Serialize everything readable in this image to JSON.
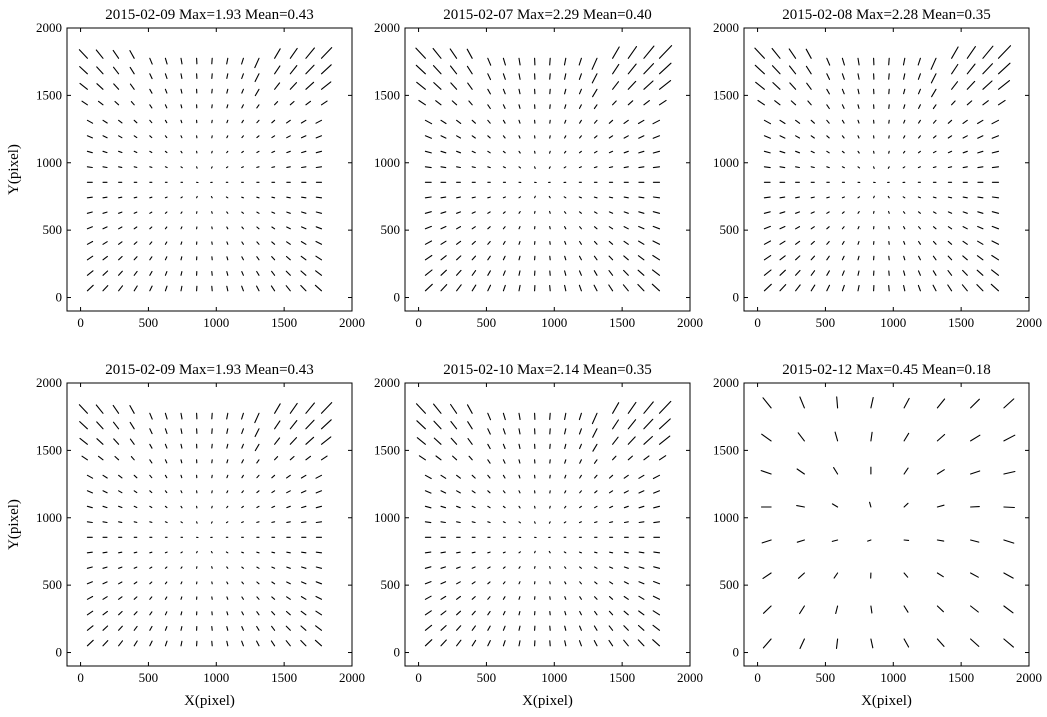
{
  "figure": {
    "xlabel": "X(pixel)",
    "ylabel": "Y(pixel)"
  },
  "chart_data": [
    {
      "type": "quiver",
      "title": "2015-02-09 Max=1.93 Mean=0.43",
      "xlim": [
        -100,
        2000
      ],
      "ylim": [
        -100,
        2000
      ],
      "xticks": [
        0,
        500,
        1000,
        1500,
        2000
      ],
      "yticks": [
        0,
        500,
        1000,
        1500,
        2000
      ],
      "grid_start": 50,
      "grid_step": 115,
      "grid_n": 17,
      "pattern": "radial",
      "max": 1.93,
      "mean": 0.43
    },
    {
      "type": "quiver",
      "title": "2015-02-07 Max=2.29 Mean=0.40",
      "xlim": [
        -100,
        2000
      ],
      "ylim": [
        -100,
        2000
      ],
      "xticks": [
        0,
        500,
        1000,
        1500,
        2000
      ],
      "yticks": [
        0,
        500,
        1000,
        1500,
        2000
      ],
      "grid_start": 50,
      "grid_step": 115,
      "grid_n": 17,
      "pattern": "radial",
      "max": 2.29,
      "mean": 0.4
    },
    {
      "type": "quiver",
      "title": "2015-02-08 Max=2.28 Mean=0.35",
      "xlim": [
        -100,
        2000
      ],
      "ylim": [
        -100,
        2000
      ],
      "xticks": [
        0,
        500,
        1000,
        1500,
        2000
      ],
      "yticks": [
        0,
        500,
        1000,
        1500,
        2000
      ],
      "grid_start": 50,
      "grid_step": 115,
      "grid_n": 17,
      "pattern": "radial",
      "max": 2.28,
      "mean": 0.35
    },
    {
      "type": "quiver",
      "title": "2015-02-09 Max=1.93 Mean=0.43",
      "xlim": [
        -100,
        2000
      ],
      "ylim": [
        -100,
        2000
      ],
      "xticks": [
        0,
        500,
        1000,
        1500,
        2000
      ],
      "yticks": [
        0,
        500,
        1000,
        1500,
        2000
      ],
      "grid_start": 50,
      "grid_step": 115,
      "grid_n": 17,
      "pattern": "radial",
      "max": 1.93,
      "mean": 0.43
    },
    {
      "type": "quiver",
      "title": "2015-02-10 Max=2.14 Mean=0.35",
      "xlim": [
        -100,
        2000
      ],
      "ylim": [
        -100,
        2000
      ],
      "xticks": [
        0,
        500,
        1000,
        1500,
        2000
      ],
      "yticks": [
        0,
        500,
        1000,
        1500,
        2000
      ],
      "grid_start": 50,
      "grid_step": 115,
      "grid_n": 17,
      "pattern": "radial",
      "max": 2.14,
      "mean": 0.35
    },
    {
      "type": "quiver",
      "title": "2015-02-12 Max=0.45 Mean=0.18",
      "xlim": [
        -100,
        2000
      ],
      "ylim": [
        -100,
        2000
      ],
      "xticks": [
        0,
        500,
        1000,
        1500,
        2000
      ],
      "yticks": [
        0,
        500,
        1000,
        1500,
        2000
      ],
      "grid_start": 100,
      "grid_step": 245,
      "grid_n": 8,
      "pattern": "sparse-radial",
      "max": 0.45,
      "mean": 0.18
    }
  ]
}
